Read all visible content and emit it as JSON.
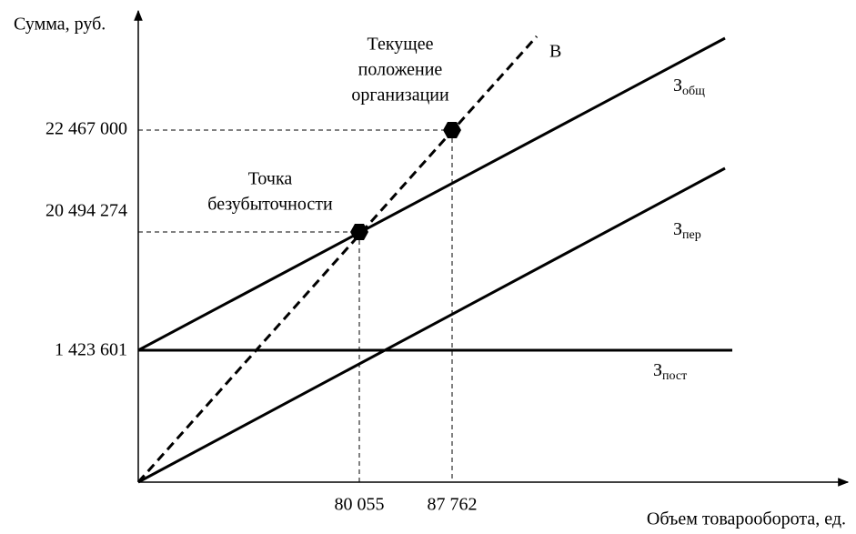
{
  "axes": {
    "y_label": "Сумма, руб.",
    "x_label": "Объем товарооборота, ед."
  },
  "y_ticks": [
    "22 467 000",
    "20 494 274",
    "1 423 601"
  ],
  "x_ticks": [
    "80 055",
    "87 762"
  ],
  "annotations": {
    "current_position": [
      "Текущее",
      "положение",
      "организации"
    ],
    "break_even": [
      "Точка",
      "безубыточности"
    ]
  },
  "lines": [
    {
      "label": "В"
    },
    {
      "label": "З",
      "sub": "общ"
    },
    {
      "label": "З",
      "sub": "пер"
    },
    {
      "label": "З",
      "sub": "пост"
    }
  ]
}
